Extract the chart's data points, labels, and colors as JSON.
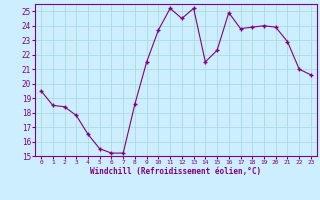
{
  "x": [
    0,
    1,
    2,
    3,
    4,
    5,
    6,
    7,
    8,
    9,
    10,
    11,
    12,
    13,
    14,
    15,
    16,
    17,
    18,
    19,
    20,
    21,
    22,
    23
  ],
  "y": [
    19.5,
    18.5,
    18.4,
    17.8,
    16.5,
    15.5,
    15.2,
    15.2,
    18.6,
    21.5,
    23.7,
    25.2,
    24.5,
    25.2,
    21.5,
    22.3,
    24.9,
    23.8,
    23.9,
    24.0,
    23.9,
    22.9,
    21.0,
    20.6
  ],
  "line_color": "#800080",
  "marker_color": "#800080",
  "bg_color": "#cceeff",
  "grid_color": "#aadddd",
  "axis_line_color": "#800080",
  "xlabel": "Windchill (Refroidissement éolien,°C)",
  "xlabel_color": "#800080",
  "tick_color": "#800080",
  "ylim": [
    15,
    25.5
  ],
  "xlim": [
    -0.5,
    23.5
  ],
  "yticks": [
    15,
    16,
    17,
    18,
    19,
    20,
    21,
    22,
    23,
    24,
    25
  ],
  "xticks": [
    0,
    1,
    2,
    3,
    4,
    5,
    6,
    7,
    8,
    9,
    10,
    11,
    12,
    13,
    14,
    15,
    16,
    17,
    18,
    19,
    20,
    21,
    22,
    23
  ],
  "xtick_labels": [
    "0",
    "1",
    "2",
    "3",
    "4",
    "5",
    "6",
    "7",
    "8",
    "9",
    "10",
    "11",
    "12",
    "13",
    "14",
    "15",
    "16",
    "17",
    "18",
    "19",
    "20",
    "21",
    "22",
    "23"
  ]
}
